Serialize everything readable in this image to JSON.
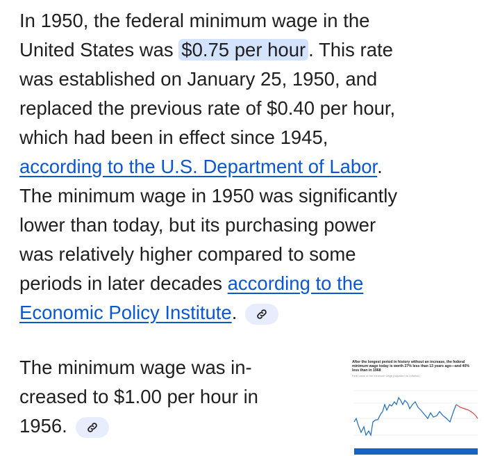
{
  "paragraph1": {
    "l1": "In 1950, the federal minimum wage in the",
    "l2a": "United States was ",
    "highlight": "$0.75 per hour",
    "l2b": ". This rate",
    "l3": "was established on January 25, 1950, and",
    "l4": "replaced the previous rate of $0.40 per hour,",
    "l5": "which had been in effect since 1945,",
    "link1": "according to the U.S. Department of Labor",
    "l6b": ".",
    "l7": "The minimum wage in 1950 was significantly",
    "l8": "lower than today, but its purchasing power",
    "l9": "was relatively higher compared to some",
    "l10a": "periods in later decades ",
    "link2a": "according to the",
    "link2b": "Economic Policy Institute",
    "l11b": "."
  },
  "paragraph2": {
    "l1": "The minimum wage was in-",
    "l2": "creased to $1.00 per hour in",
    "l3": "1956."
  },
  "icons": {
    "source_chip": "link-icon"
  },
  "colors": {
    "link": "#0b57d0",
    "highlight": "#d3e3fd",
    "chip": "#e8edfd"
  },
  "thumbnail": {
    "title": "After the longest period in history without an increase, the federal minimum wage today is worth 27% less than 13 years ago—and 40% less than in 1968",
    "subtitle": "Real value of the minimum wage (adjusted for inflation)"
  }
}
